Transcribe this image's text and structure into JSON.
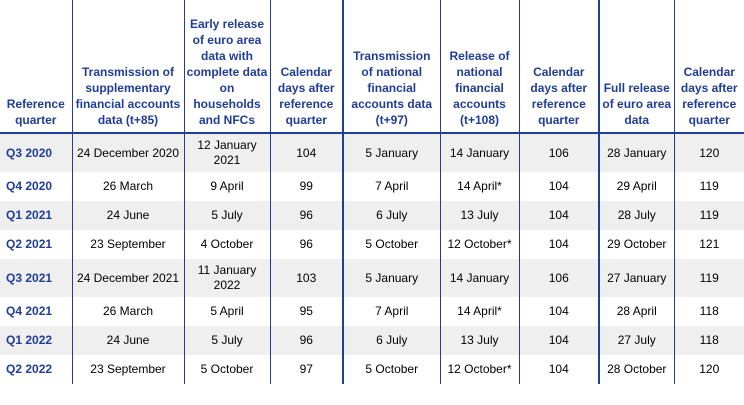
{
  "headers": [
    "Reference quarter",
    "Transmission of supplementary financial accounts data (t+85)",
    "Early release of euro area data with complete data on households and NFCs",
    "Calendar days after reference quarter",
    "Transmission of national financial accounts data (t+97)",
    "Release of national financial accounts (t+108)",
    "Calendar days after reference quarter",
    "Full release of euro area data",
    "Calendar days after reference quarter"
  ],
  "rows": [
    [
      "Q3 2020",
      "24 December 2020",
      "12 January 2021",
      "104",
      "5 January",
      "14 January",
      "106",
      "28 January",
      "120"
    ],
    [
      "Q4 2020",
      "26 March",
      "9 April",
      "99",
      "7 April",
      "14 April*",
      "104",
      "29 April",
      "119"
    ],
    [
      "Q1 2021",
      "24 June",
      "5 July",
      "96",
      "6 July",
      "13 July",
      "104",
      "28 July",
      "119"
    ],
    [
      "Q2 2021",
      "23 September",
      "4 October",
      "96",
      "5 October",
      "12 October*",
      "104",
      "29 October",
      "121"
    ],
    [
      "Q3 2021",
      "24 December 2021",
      "11 January 2022",
      "103",
      "5 January",
      "14 January",
      "106",
      "27 January",
      "119"
    ],
    [
      "Q4 2021",
      "26 March",
      "5 April",
      "95",
      "7 April",
      "14 April*",
      "104",
      "28 April",
      "118"
    ],
    [
      "Q1 2022",
      "24 June",
      "5 July",
      "96",
      "6 July",
      "13 July",
      "104",
      "27 July",
      "118"
    ],
    [
      "Q2 2022",
      "23 September",
      "5 October",
      "97",
      "5 October",
      "12 October*",
      "104",
      "28 October",
      "120"
    ]
  ],
  "colors": {
    "header_text": "#1f3d99",
    "rule": "#1f3d99",
    "row_shade": "#efeff0"
  }
}
